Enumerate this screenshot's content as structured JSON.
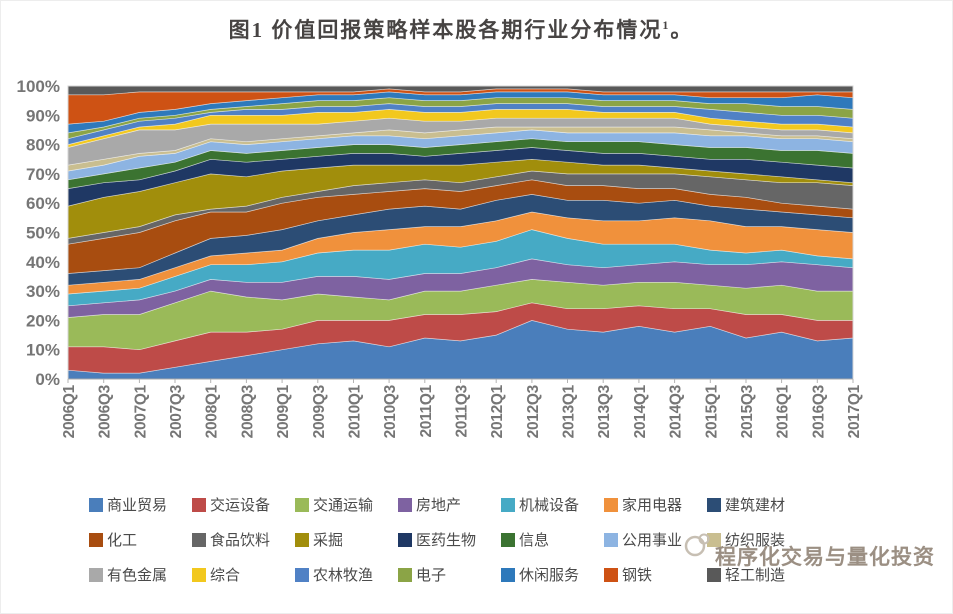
{
  "title": {
    "text": "图1 价值回报策略样本股各期行业分布情况",
    "footnote_mark": "1",
    "suffix": "。"
  },
  "watermark": {
    "text": "程序化交易与量化投资"
  },
  "chart_data": {
    "type": "area",
    "stacked": true,
    "normalized_percent": true,
    "title": "图1 价值回报策略样本股各期行业分布情况",
    "xlabel": "",
    "ylabel": "",
    "ylim": [
      0,
      100
    ],
    "grid": false,
    "legend_position": "bottom",
    "y_tick_labels": [
      "0%",
      "10%",
      "20%",
      "30%",
      "40%",
      "50%",
      "60%",
      "70%",
      "80%",
      "90%",
      "100%"
    ],
    "x_labels": [
      "2006Q1",
      "2006Q3",
      "2007Q1",
      "2007Q3",
      "2008Q1",
      "2008Q3",
      "2009Q1",
      "2009Q3",
      "2010Q1",
      "2010Q3",
      "2011Q1",
      "2011Q3",
      "2012Q1",
      "2012Q3",
      "2013Q1",
      "2013Q3",
      "2014Q1",
      "2014Q3",
      "2015Q1",
      "2015Q3",
      "2016Q1",
      "2016Q3",
      "2017Q1"
    ],
    "series": [
      {
        "name": "商业贸易",
        "color": "#4A7EBB",
        "values": [
          3,
          2,
          2,
          4,
          6,
          8,
          10,
          12,
          13,
          11,
          14,
          13,
          15,
          20,
          17,
          16,
          18,
          16,
          18,
          14,
          16,
          13,
          14
        ]
      },
      {
        "name": "交运设备",
        "color": "#BE4B48",
        "values": [
          8,
          9,
          8,
          9,
          10,
          8,
          7,
          8,
          7,
          9,
          8,
          9,
          8,
          6,
          7,
          8,
          7,
          8,
          6,
          8,
          6,
          7,
          6
        ]
      },
      {
        "name": "交通运输",
        "color": "#9ABA59",
        "values": [
          10,
          11,
          12,
          13,
          14,
          12,
          10,
          9,
          8,
          7,
          8,
          8,
          9,
          8,
          9,
          8,
          8,
          9,
          8,
          9,
          10,
          10,
          10
        ]
      },
      {
        "name": "房地产",
        "color": "#7E62A1",
        "values": [
          4,
          4,
          5,
          4,
          4,
          5,
          6,
          6,
          7,
          7,
          6,
          6,
          6,
          7,
          6,
          6,
          6,
          7,
          7,
          8,
          8,
          9,
          8
        ]
      },
      {
        "name": "机械设备",
        "color": "#46AAC5",
        "values": [
          4,
          4,
          4,
          5,
          5,
          6,
          7,
          8,
          9,
          10,
          10,
          9,
          9,
          10,
          9,
          8,
          7,
          6,
          5,
          4,
          4,
          3,
          3
        ]
      },
      {
        "name": "家用电器",
        "color": "#F0913C",
        "values": [
          3,
          3,
          3,
          3,
          3,
          4,
          4,
          5,
          6,
          7,
          6,
          7,
          7,
          6,
          7,
          8,
          8,
          9,
          10,
          9,
          8,
          9,
          9
        ]
      },
      {
        "name": "建筑建材",
        "color": "#2C4D75",
        "values": [
          4,
          4,
          4,
          5,
          6,
          6,
          7,
          6,
          6,
          7,
          7,
          6,
          7,
          6,
          6,
          7,
          6,
          6,
          5,
          6,
          5,
          5,
          5
        ]
      },
      {
        "name": "化工",
        "color": "#A84D10",
        "values": [
          10,
          11,
          12,
          11,
          9,
          8,
          9,
          8,
          7,
          6,
          6,
          6,
          5,
          5,
          5,
          5,
          5,
          4,
          4,
          4,
          3,
          3,
          3
        ]
      },
      {
        "name": "食品饮料",
        "color": "#666666",
        "values": [
          2,
          2,
          2,
          2,
          1,
          2,
          2,
          2,
          3,
          3,
          3,
          3,
          3,
          3,
          4,
          4,
          5,
          5,
          6,
          6,
          7,
          8,
          8
        ]
      },
      {
        "name": "采掘",
        "color": "#A18E0C",
        "values": [
          11,
          12,
          12,
          11,
          12,
          10,
          9,
          8,
          7,
          6,
          5,
          6,
          5,
          4,
          4,
          3,
          3,
          2,
          2,
          2,
          2,
          1,
          1
        ]
      },
      {
        "name": "医药生物",
        "color": "#1F3864",
        "values": [
          6,
          5,
          4,
          4,
          5,
          5,
          4,
          4,
          4,
          4,
          3,
          4,
          4,
          4,
          4,
          4,
          4,
          4,
          4,
          5,
          5,
          5,
          5
        ]
      },
      {
        "name": "信息",
        "color": "#3B7331",
        "values": [
          3,
          3,
          4,
          3,
          3,
          3,
          3,
          3,
          3,
          3,
          3,
          3,
          3,
          3,
          3,
          4,
          4,
          4,
          4,
          4,
          4,
          5,
          5
        ]
      },
      {
        "name": "公用事业",
        "color": "#8DB4E2",
        "values": [
          3,
          3,
          4,
          3,
          3,
          3,
          3,
          3,
          3,
          3,
          3,
          3,
          3,
          3,
          3,
          3,
          3,
          4,
          4,
          4,
          4,
          4,
          4
        ]
      },
      {
        "name": "纺织服装",
        "color": "#C9BE90",
        "values": [
          2,
          2,
          1,
          1,
          1,
          1,
          1,
          1,
          1,
          2,
          2,
          2,
          2,
          1,
          2,
          2,
          2,
          2,
          2,
          1,
          1,
          1,
          1
        ]
      },
      {
        "name": "有色金属",
        "color": "#A9A9A9",
        "values": [
          6,
          7,
          8,
          7,
          5,
          6,
          5,
          4,
          4,
          4,
          4,
          3,
          3,
          3,
          3,
          3,
          3,
          3,
          2,
          2,
          2,
          2,
          2
        ]
      },
      {
        "name": "综合",
        "color": "#F2C81E",
        "values": [
          1,
          1,
          1,
          2,
          3,
          3,
          3,
          4,
          3,
          3,
          3,
          3,
          3,
          3,
          3,
          2,
          2,
          2,
          2,
          2,
          2,
          2,
          2
        ]
      },
      {
        "name": "农林牧渔",
        "color": "#5081C5",
        "values": [
          2,
          2,
          2,
          2,
          1,
          2,
          2,
          2,
          2,
          2,
          2,
          2,
          2,
          2,
          2,
          2,
          2,
          2,
          3,
          3,
          3,
          3,
          3
        ]
      },
      {
        "name": "电子",
        "color": "#8BA446",
        "values": [
          2,
          1,
          1,
          1,
          1,
          1,
          2,
          2,
          2,
          2,
          2,
          2,
          2,
          2,
          2,
          2,
          2,
          2,
          2,
          3,
          3,
          3,
          3
        ]
      },
      {
        "name": "休闲服务",
        "color": "#2E79BB",
        "values": [
          3,
          2,
          2,
          2,
          2,
          2,
          2,
          2,
          2,
          2,
          2,
          2,
          2,
          2,
          2,
          2,
          2,
          2,
          2,
          2,
          3,
          4,
          4
        ]
      },
      {
        "name": "钢铁",
        "color": "#CE5214",
        "values": [
          10,
          9,
          7,
          6,
          4,
          3,
          2,
          1,
          1,
          1,
          1,
          1,
          1,
          1,
          1,
          1,
          1,
          1,
          2,
          2,
          2,
          1,
          2
        ]
      },
      {
        "name": "轻工制造",
        "color": "#595959",
        "values": [
          3,
          3,
          2,
          2,
          2,
          2,
          2,
          2,
          2,
          1,
          2,
          2,
          1,
          1,
          1,
          2,
          2,
          2,
          2,
          2,
          2,
          2,
          2
        ]
      }
    ]
  }
}
